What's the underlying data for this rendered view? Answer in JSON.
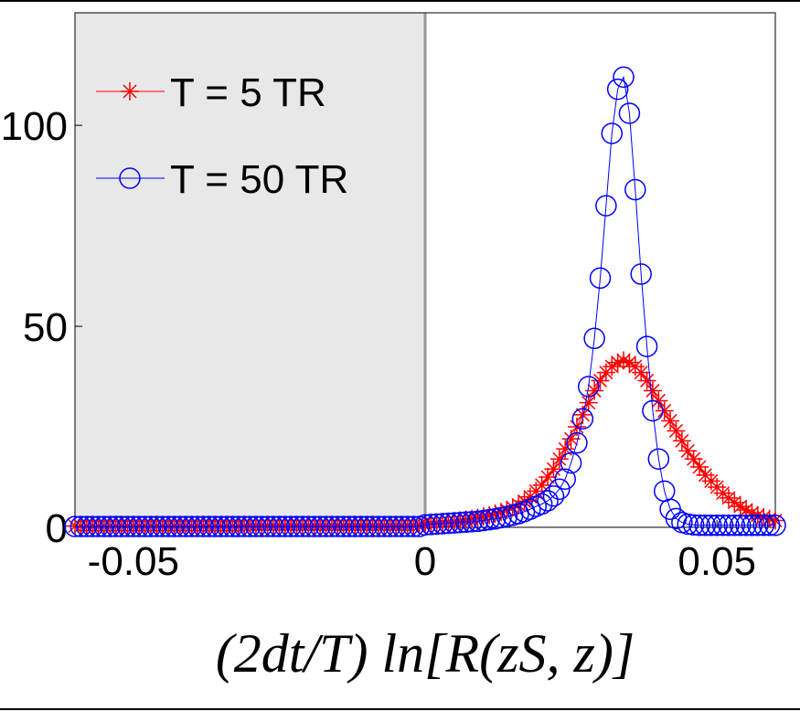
{
  "chart_data": {
    "type": "line",
    "xlabel": "(2dt/T) ln[R(zS, z)]",
    "x": [
      -0.06,
      -0.059,
      -0.058,
      -0.057,
      -0.056,
      -0.055,
      -0.054,
      -0.053,
      -0.052,
      -0.051,
      -0.05,
      -0.049,
      -0.048,
      -0.047,
      -0.046,
      -0.045,
      -0.044,
      -0.043,
      -0.042,
      -0.041,
      -0.04,
      -0.039,
      -0.038,
      -0.037,
      -0.036,
      -0.035,
      -0.034,
      -0.033,
      -0.032,
      -0.031,
      -0.03,
      -0.029,
      -0.028,
      -0.027,
      -0.026,
      -0.025,
      -0.024,
      -0.023,
      -0.022,
      -0.021,
      -0.02,
      -0.019,
      -0.018,
      -0.017,
      -0.016,
      -0.015,
      -0.014,
      -0.013,
      -0.012,
      -0.011,
      -0.01,
      -0.009,
      -0.008,
      -0.007,
      -0.006,
      -0.005,
      -0.004,
      -0.003,
      -0.002,
      -0.001,
      0,
      0.001,
      0.002,
      0.003,
      0.004,
      0.005,
      0.006,
      0.007,
      0.008,
      0.009,
      0.01,
      0.011,
      0.012,
      0.013,
      0.014,
      0.015,
      0.016,
      0.017,
      0.018,
      0.019,
      0.02,
      0.021,
      0.022,
      0.023,
      0.024,
      0.025,
      0.026,
      0.027,
      0.028,
      0.029,
      0.03,
      0.031,
      0.032,
      0.033,
      0.034,
      0.035,
      0.036,
      0.037,
      0.038,
      0.039,
      0.04,
      0.041,
      0.042,
      0.043,
      0.044,
      0.045,
      0.046,
      0.047,
      0.048,
      0.049,
      0.05,
      0.051,
      0.052,
      0.053,
      0.054,
      0.055,
      0.056,
      0.057,
      0.058,
      0.059,
      0.06
    ],
    "series": [
      {
        "name": "T = 5 TR",
        "color": "#ff0000",
        "marker": "star",
        "values": [
          0.3,
          0.3,
          0.3,
          0.3,
          0.3,
          0.3,
          0.3,
          0.3,
          0.3,
          0.3,
          0.3,
          0.3,
          0.3,
          0.3,
          0.3,
          0.3,
          0.3,
          0.3,
          0.3,
          0.3,
          0.3,
          0.3,
          0.3,
          0.3,
          0.3,
          0.3,
          0.3,
          0.3,
          0.3,
          0.3,
          0.5,
          0.5,
          0.5,
          0.5,
          0.5,
          0.5,
          0.5,
          0.5,
          0.5,
          0.5,
          0.5,
          0.5,
          0.5,
          0.5,
          0.5,
          0.5,
          0.5,
          0.5,
          0.5,
          0.5,
          0.5,
          0.5,
          0.5,
          0.5,
          0.5,
          0.5,
          0.5,
          0.5,
          0.5,
          0.5,
          1.0,
          1.1,
          1.2,
          1.3,
          1.4,
          1.5,
          1.7,
          1.9,
          2.1,
          2.4,
          2.7,
          3.0,
          3.4,
          3.8,
          4.3,
          4.9,
          5.6,
          6.5,
          7.6,
          9,
          10.5,
          12.5,
          14.5,
          17,
          19.5,
          22,
          25,
          28,
          31,
          34,
          36.5,
          38.5,
          40,
          41,
          41.5,
          41,
          40,
          38.5,
          36.5,
          34,
          31.5,
          29,
          26.5,
          24,
          21.5,
          19,
          17,
          15,
          13,
          11.5,
          10,
          8.5,
          7.3,
          6.2,
          5.2,
          4.3,
          3.6,
          3,
          2.5,
          2.1,
          1.7
        ]
      },
      {
        "name": "T = 50 TR",
        "color": "#0000ff",
        "marker": "circle",
        "values": [
          0.2,
          0.2,
          0.2,
          0.2,
          0.2,
          0.2,
          0.2,
          0.2,
          0.2,
          0.2,
          0.2,
          0.2,
          0.2,
          0.2,
          0.2,
          0.2,
          0.2,
          0.2,
          0.2,
          0.2,
          0.2,
          0.2,
          0.2,
          0.2,
          0.2,
          0.2,
          0.2,
          0.2,
          0.2,
          0.2,
          0.2,
          0.2,
          0.2,
          0.2,
          0.2,
          0.2,
          0.2,
          0.2,
          0.2,
          0.2,
          0.2,
          0.2,
          0.2,
          0.2,
          0.2,
          0.2,
          0.2,
          0.2,
          0.2,
          0.2,
          0.2,
          0.2,
          0.2,
          0.2,
          0.2,
          0.2,
          0.2,
          0.2,
          0.2,
          0.2,
          0.6,
          0.7,
          0.8,
          0.9,
          1.0,
          1.1,
          1.2,
          1.3,
          1.4,
          1.5,
          1.7,
          1.9,
          2.1,
          2.4,
          2.7,
          3.0,
          3.4,
          3.9,
          4.5,
          5.2,
          5.8,
          6.6,
          7.8,
          9.5,
          12,
          16,
          21,
          27,
          35,
          47,
          62,
          80,
          98,
          109,
          112,
          103,
          84,
          63,
          45,
          29,
          17,
          9,
          4.5,
          2.2,
          1.2,
          0.8,
          0.6,
          0.5,
          0.5,
          0.5,
          0.5,
          0.5,
          0.5,
          0.5,
          0.5,
          0.5,
          0.5,
          0.5,
          0.5,
          0.5,
          0.5
        ]
      }
    ],
    "xlim": [
      -0.06,
      0.06
    ],
    "ylim": [
      0,
      128
    ],
    "xticks": [
      -0.05,
      0,
      0.05
    ],
    "yticks": [
      0,
      50,
      100
    ],
    "shaded_region": [
      -0.06,
      0
    ],
    "legend": "upper left"
  }
}
